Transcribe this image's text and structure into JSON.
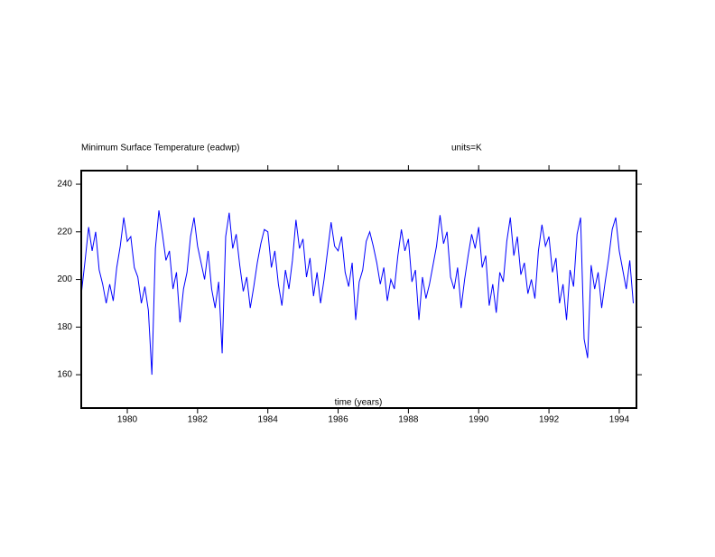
{
  "chart_data": {
    "type": "line",
    "title": "Minimum Surface Temperature (eadwp)",
    "subtitle": "units=K",
    "x_label": "time (years)",
    "x": [
      1978.7,
      1978.8,
      1978.9,
      1979.0,
      1979.1,
      1979.2,
      1979.3,
      1979.4,
      1979.5,
      1979.6,
      1979.7,
      1979.8,
      1979.9,
      1980.0,
      1980.1,
      1980.2,
      1980.3,
      1980.4,
      1980.5,
      1980.6,
      1980.7,
      1980.8,
      1980.9,
      1981.0,
      1981.1,
      1981.2,
      1981.3,
      1981.4,
      1981.5,
      1981.6,
      1981.7,
      1981.8,
      1981.9,
      1982.0,
      1982.1,
      1982.2,
      1982.3,
      1982.4,
      1982.5,
      1982.6,
      1982.7,
      1982.8,
      1982.9,
      1983.0,
      1983.1,
      1983.2,
      1983.3,
      1983.4,
      1983.5,
      1983.6,
      1983.7,
      1983.8,
      1983.9,
      1984.0,
      1984.1,
      1984.2,
      1984.3,
      1984.4,
      1984.5,
      1984.6,
      1984.7,
      1984.8,
      1984.9,
      1985.0,
      1985.1,
      1985.2,
      1985.3,
      1985.4,
      1985.5,
      1985.6,
      1985.7,
      1985.8,
      1985.9,
      1986.0,
      1986.1,
      1986.2,
      1986.3,
      1986.4,
      1986.5,
      1986.6,
      1986.7,
      1986.8,
      1986.9,
      1987.0,
      1987.1,
      1987.2,
      1987.3,
      1987.4,
      1987.5,
      1987.6,
      1987.7,
      1987.8,
      1987.9,
      1988.0,
      1988.1,
      1988.2,
      1988.3,
      1988.4,
      1988.5,
      1988.6,
      1988.7,
      1988.8,
      1988.9,
      1989.0,
      1989.1,
      1989.2,
      1989.3,
      1989.4,
      1989.5,
      1989.6,
      1989.7,
      1989.8,
      1989.9,
      1990.0,
      1990.1,
      1990.2,
      1990.3,
      1990.4,
      1990.5,
      1990.6,
      1990.7,
      1990.8,
      1990.9,
      1991.0,
      1991.1,
      1991.2,
      1991.3,
      1991.4,
      1991.5,
      1991.6,
      1991.7,
      1991.8,
      1991.9,
      1992.0,
      1992.1,
      1992.2,
      1992.3,
      1992.4,
      1992.5,
      1992.6,
      1992.7,
      1992.8,
      1992.9,
      1993.0,
      1993.1,
      1993.2,
      1993.3,
      1993.4,
      1993.5,
      1993.6,
      1993.7,
      1993.8,
      1993.9,
      1994.0,
      1994.1,
      1994.2,
      1994.3,
      1994.4
    ],
    "series": [
      {
        "color": "#0000ff",
        "values": [
          195,
          208,
          222,
          212,
          220,
          204,
          198,
          190,
          198,
          191,
          205,
          214,
          226,
          216,
          218,
          205,
          201,
          190,
          197,
          187,
          160,
          213,
          229,
          219,
          208,
          212,
          196,
          203,
          182,
          196,
          203,
          218,
          226,
          214,
          207,
          200,
          212,
          196,
          188,
          199,
          169,
          218,
          228,
          213,
          219,
          206,
          195,
          201,
          188,
          197,
          207,
          215,
          221,
          220,
          205,
          212,
          198,
          189,
          204,
          196,
          208,
          225,
          213,
          217,
          201,
          209,
          193,
          203,
          190,
          200,
          212,
          224,
          214,
          212,
          218,
          203,
          197,
          207,
          183,
          199,
          204,
          216,
          220,
          214,
          207,
          198,
          205,
          191,
          200,
          196,
          210,
          221,
          212,
          217,
          199,
          204,
          183,
          201,
          192,
          198,
          206,
          214,
          227,
          215,
          220,
          201,
          196,
          205,
          188,
          200,
          210,
          219,
          213,
          222,
          205,
          210,
          189,
          198,
          186,
          203,
          199,
          216,
          226,
          210,
          218,
          202,
          207,
          194,
          200,
          192,
          212,
          223,
          214,
          218,
          203,
          209,
          190,
          198,
          183,
          204,
          197,
          219,
          226,
          175,
          167,
          206,
          196,
          203,
          188,
          199,
          209,
          221,
          226,
          212,
          204,
          196,
          208,
          190
        ]
      }
    ],
    "xlim": [
      1978.69,
      1994.49
    ],
    "ylim": [
      146,
      245.7
    ],
    "xticks": [
      1980,
      1982,
      1984,
      1986,
      1988,
      1990,
      1992,
      1994
    ],
    "yticks": [
      160,
      180,
      200,
      220,
      240
    ]
  }
}
